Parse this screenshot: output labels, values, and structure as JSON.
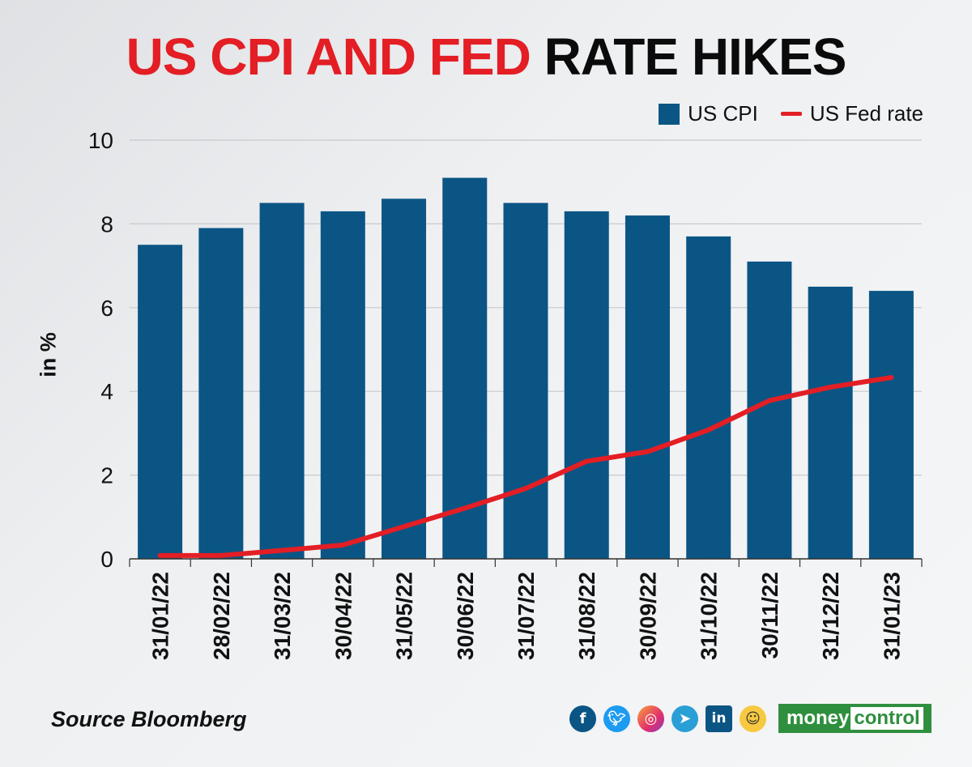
{
  "header": {
    "title_red": "US CPI AND FED",
    "title_black": "RATE HIKES"
  },
  "legend": {
    "bar_label": "US CPI",
    "line_label": "US Fed rate"
  },
  "colors": {
    "bar": "#0b5585",
    "line": "#e31e24",
    "grid": "#c7c9cc",
    "axis_text": "#111111"
  },
  "chart_data": {
    "type": "bar",
    "title": "US CPI AND FED RATE HIKES",
    "ylabel": "in %",
    "xlabel": "",
    "ylim": [
      0,
      10
    ],
    "yticks": [
      0,
      2,
      4,
      6,
      8,
      10
    ],
    "grid": "horizontal",
    "legend_position": "top-right",
    "categories": [
      "31/01/22",
      "28/02/22",
      "31/03/22",
      "30/04/22",
      "31/05/22",
      "30/06/22",
      "31/07/22",
      "31/08/22",
      "30/09/22",
      "31/10/22",
      "30/11/22",
      "31/12/22",
      "31/01/23"
    ],
    "series": [
      {
        "name": "US CPI",
        "type": "bar",
        "values": [
          7.5,
          7.9,
          8.5,
          8.3,
          8.6,
          9.1,
          8.5,
          8.3,
          8.2,
          7.7,
          7.1,
          6.5,
          6.4
        ]
      },
      {
        "name": "US Fed rate",
        "type": "line",
        "values": [
          0.08,
          0.08,
          0.2,
          0.33,
          0.77,
          1.21,
          1.68,
          2.33,
          2.56,
          3.08,
          3.78,
          4.1,
          4.33
        ]
      }
    ]
  },
  "footer": {
    "source": "Source Bloomberg",
    "icons": [
      "facebook-icon",
      "twitter-icon",
      "instagram-icon",
      "telegram-icon",
      "linkedin-icon",
      "koo-icon"
    ],
    "brand_part1": "money",
    "brand_part2": "control"
  }
}
